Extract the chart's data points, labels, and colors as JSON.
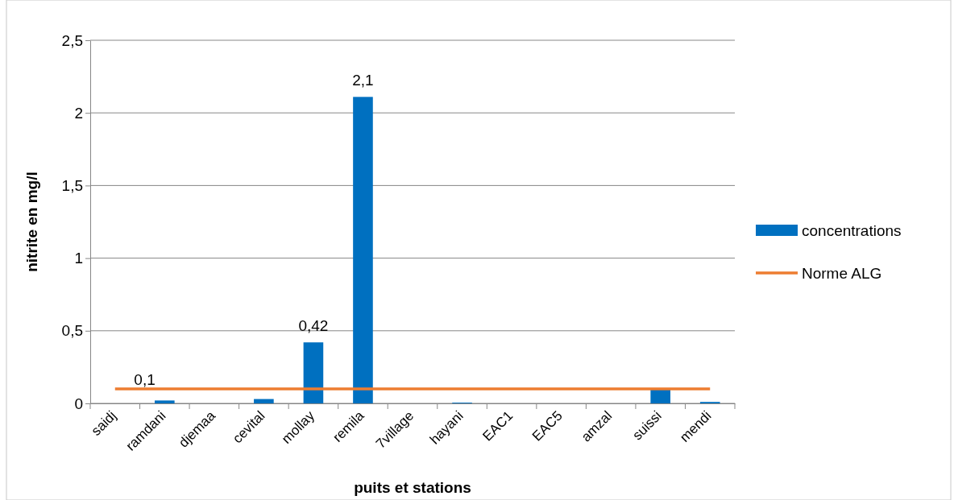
{
  "chart_data": {
    "type": "bar",
    "xlabel": "puits et stations",
    "ylabel": "nitrite en mg/l",
    "categories": [
      "saidj",
      "ramdani",
      "djemaa",
      "cevital",
      "mollay",
      "remila",
      "7village",
      "hayani",
      "EAC1",
      "EAC5",
      "amzal",
      "suissi",
      "mendi"
    ],
    "series": [
      {
        "name": "concentrations",
        "color": "#0070c0",
        "values": [
          0,
          0.02,
          0,
          0.03,
          0.42,
          2.11,
          0,
          0.005,
          0,
          0,
          0,
          0.1,
          0.01
        ],
        "value_labels": [
          null,
          null,
          null,
          null,
          "0,42",
          "2,1",
          null,
          null,
          null,
          null,
          null,
          null,
          null
        ]
      },
      {
        "name": "Norme ALG",
        "type": "line",
        "color": "#ed7d31",
        "values": [
          0.1,
          0.1,
          0.1,
          0.1,
          0.1,
          0.1,
          0.1,
          0.1,
          0.1,
          0.1,
          0.1,
          0.1,
          0.1
        ]
      }
    ],
    "annotations": [
      {
        "text": "0,1",
        "x": "ramdani",
        "y": 0.1
      }
    ],
    "ylim": [
      0,
      2.5
    ],
    "yticks": [
      {
        "value": 0,
        "label": "0"
      },
      {
        "value": 0.5,
        "label": "0,5"
      },
      {
        "value": 1,
        "label": "1"
      },
      {
        "value": 1.5,
        "label": "1,5"
      },
      {
        "value": 2,
        "label": "2"
      },
      {
        "value": 2.5,
        "label": "2,5"
      }
    ],
    "grid": "y",
    "legend": "right"
  }
}
